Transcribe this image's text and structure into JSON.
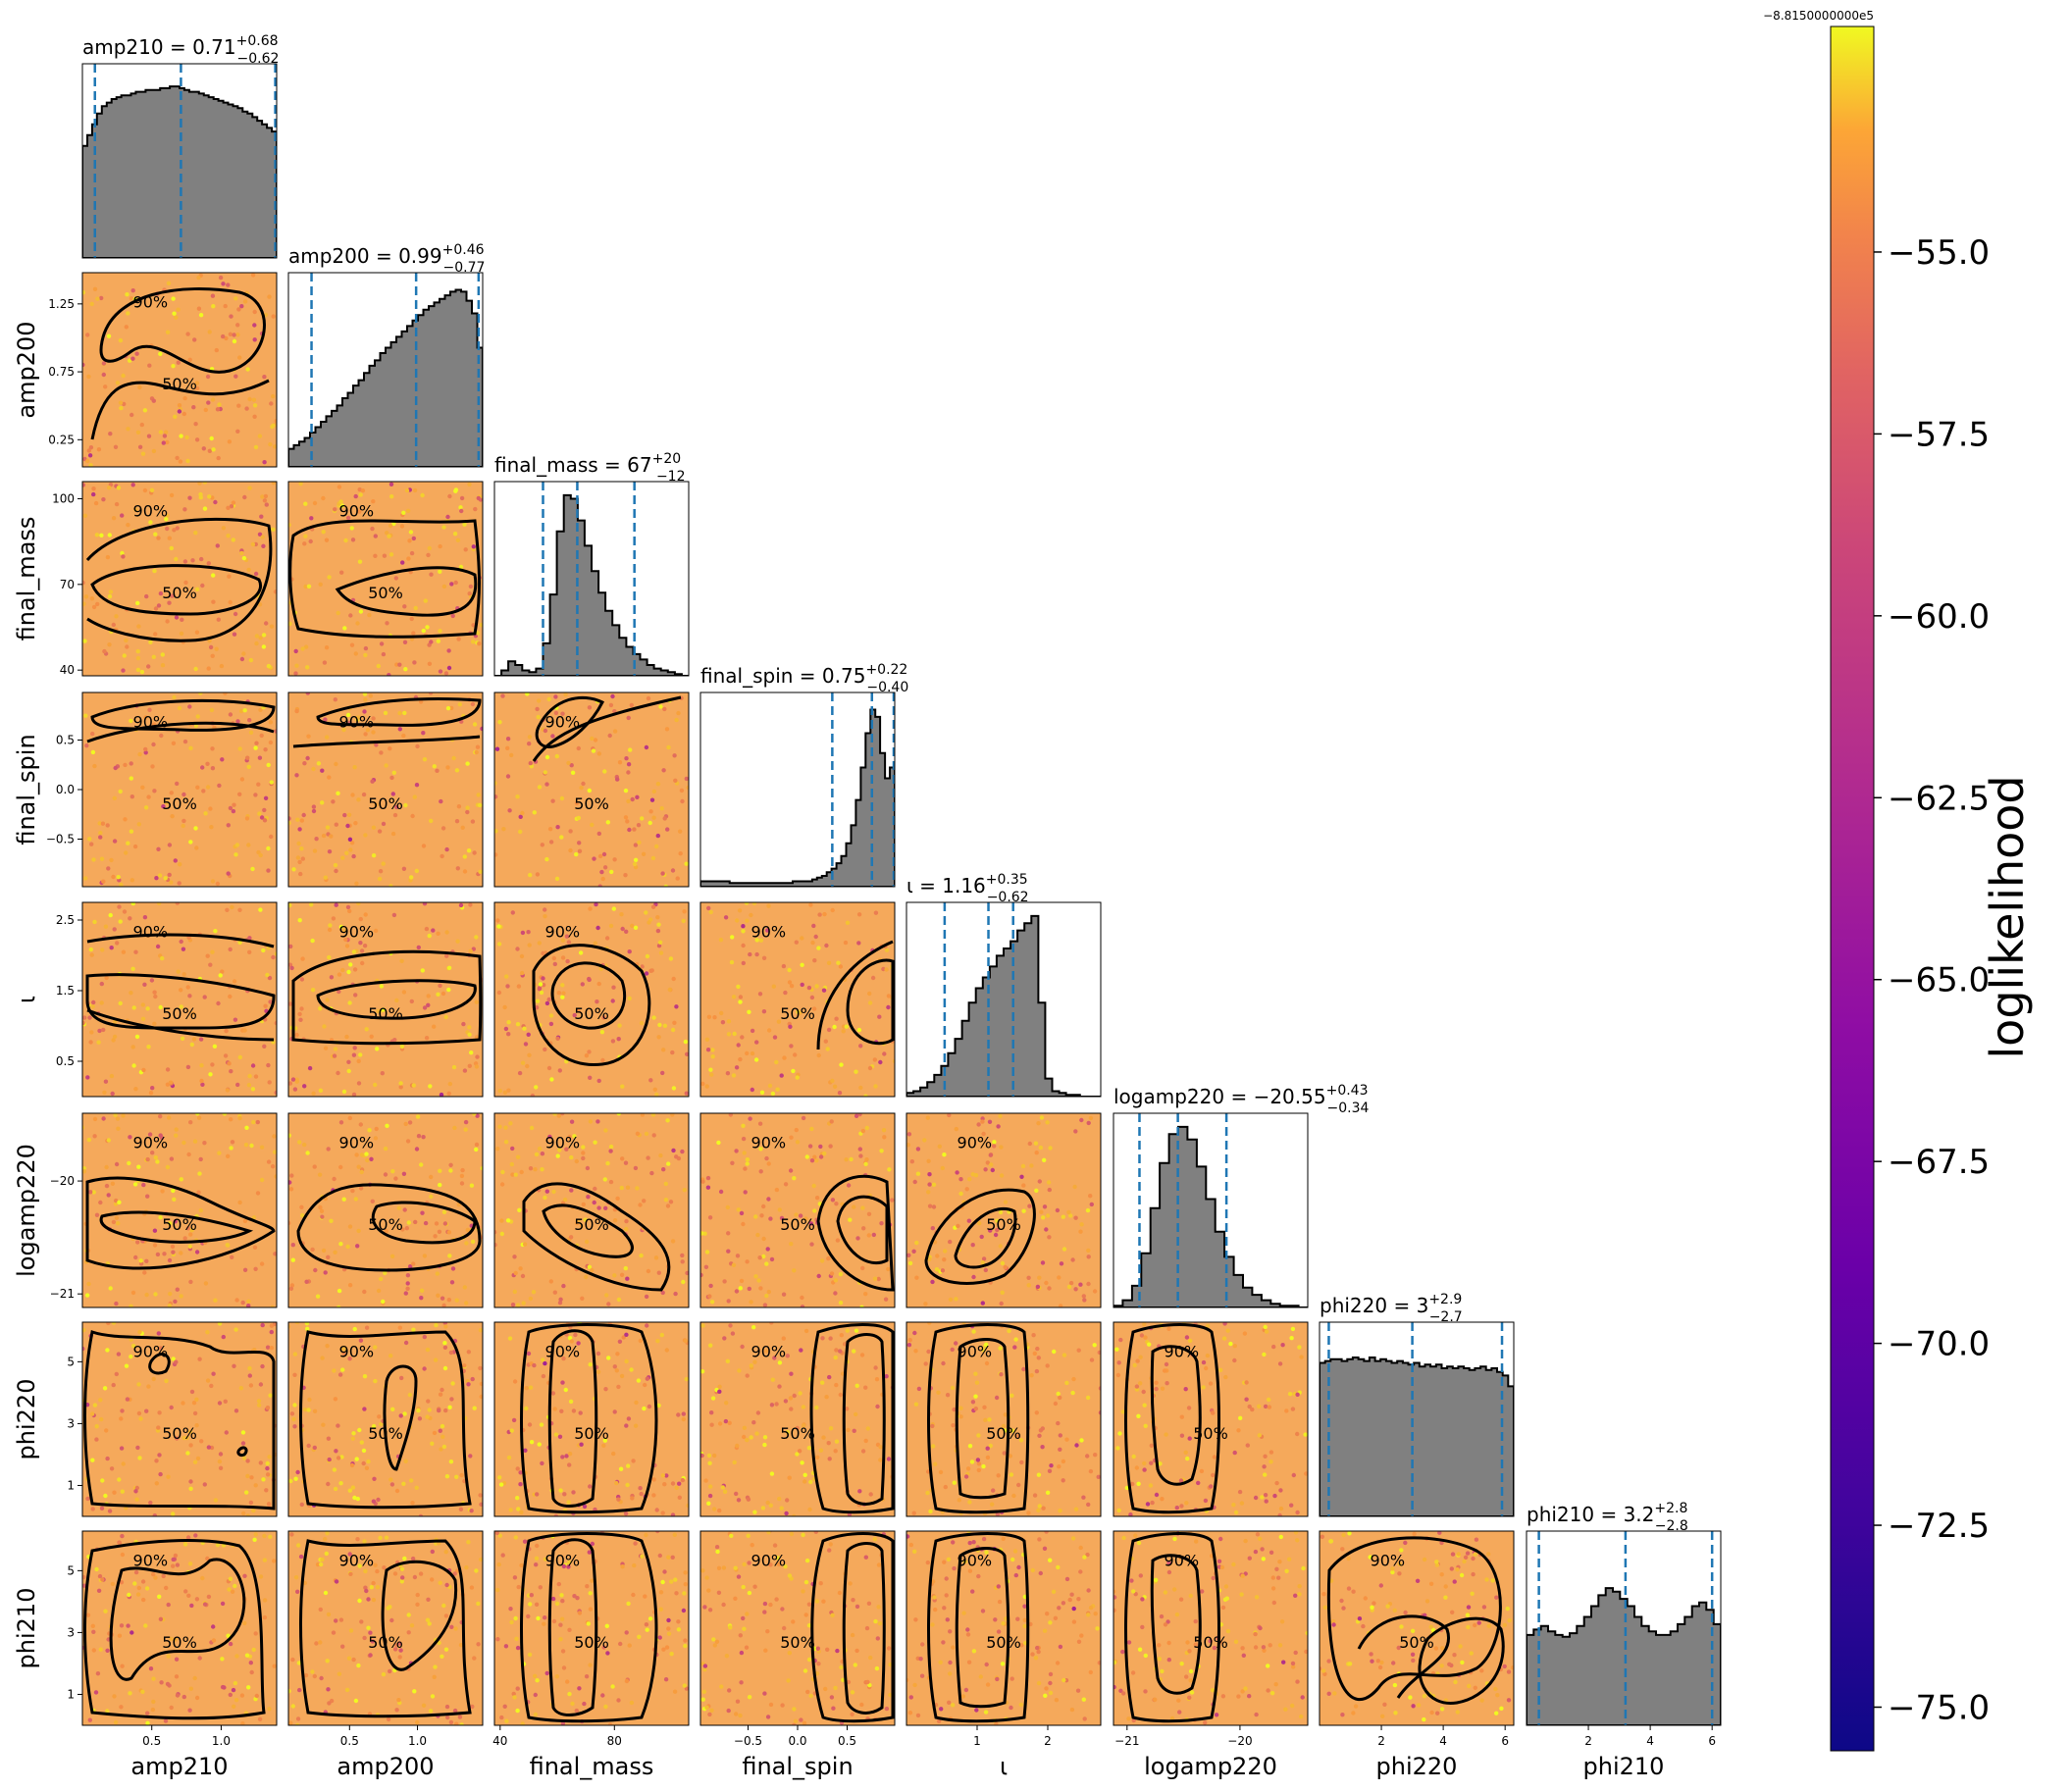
{
  "chart_data": {
    "type": "corner",
    "colormap": "plasma",
    "colorbar": {
      "label": "loglikelihood",
      "offset_text": "−8.8150000000e5",
      "range": [
        -75.6,
        -51.9
      ],
      "ticks": [
        -55.0,
        -57.5,
        -60.0,
        -62.5,
        -65.0,
        -67.5,
        -70.0,
        -72.5,
        -75.0
      ],
      "tick_labels": [
        "−55.0",
        "−57.5",
        "−60.0",
        "−62.5",
        "−65.0",
        "−67.5",
        "−70.0",
        "−72.5",
        "−75.0"
      ]
    },
    "parameters": [
      {
        "name": "amp210",
        "xlabel": "amp210",
        "ylabel": "",
        "title": "amp210 = 0.71",
        "sup": "+0.68",
        "sub": "−0.62",
        "range": [
          0.0,
          1.4
        ],
        "ticks": [
          0.5,
          1.0
        ],
        "tick_labels": [
          "0.5",
          "1.0"
        ],
        "median": 0.71,
        "lo": 0.09,
        "hi": 1.39
      },
      {
        "name": "amp200",
        "xlabel": "amp200",
        "ylabel": "amp200",
        "title": "amp200 = 0.99",
        "sup": "+0.46",
        "sub": "−0.77",
        "range": [
          0.05,
          1.48
        ],
        "ticks": [
          0.25,
          0.75,
          1.25
        ],
        "tick_labels": [
          "0.25",
          "0.75",
          "1.25"
        ],
        "xticks": [
          0.5,
          1.0
        ],
        "xtick_labels": [
          "0.5",
          "1.0"
        ],
        "median": 0.99,
        "lo": 0.22,
        "hi": 1.45
      },
      {
        "name": "final_mass",
        "xlabel": "final_mass",
        "ylabel": "final_mass",
        "title": "final_mass = 67",
        "sup": "+20",
        "sub": "−12",
        "range": [
          38,
          106
        ],
        "ticks": [
          40,
          70,
          100
        ],
        "tick_labels": [
          "40",
          "70",
          "100"
        ],
        "xticks": [
          40,
          80
        ],
        "xtick_labels": [
          "40",
          "80"
        ],
        "median": 67,
        "lo": 55,
        "hi": 87
      },
      {
        "name": "final_spin",
        "xlabel": "final_spin",
        "ylabel": "final_spin",
        "title": "final_spin = 0.75",
        "sup": "+0.22",
        "sub": "−0.40",
        "range": [
          -0.98,
          0.98
        ],
        "ticks": [
          -0.5,
          0.0,
          0.5
        ],
        "tick_labels": [
          "−0.5",
          "0.0",
          "0.5"
        ],
        "xticks": [
          -0.5,
          0.0,
          0.5
        ],
        "xtick_labels": [
          "−0.5",
          "0.0",
          "0.5"
        ],
        "median": 0.75,
        "lo": 0.35,
        "hi": 0.97
      },
      {
        "name": "iota",
        "xlabel": "ι",
        "ylabel": "ι",
        "title": "ι = 1.16",
        "sup": "+0.35",
        "sub": "−0.62",
        "range": [
          0.0,
          2.75
        ],
        "ticks": [
          0.5,
          1.5,
          2.5
        ],
        "tick_labels": [
          "0.5",
          "1.5",
          "2.5"
        ],
        "xticks": [
          1,
          2
        ],
        "xtick_labels": [
          "1",
          "2"
        ],
        "median": 1.16,
        "lo": 0.54,
        "hi": 1.51
      },
      {
        "name": "logamp220",
        "xlabel": "logamp220",
        "ylabel": "logamp220",
        "title": "logamp220 = −20.55",
        "sup": "+0.43",
        "sub": "−0.34",
        "range": [
          -21.12,
          -19.4
        ],
        "ticks": [
          -21,
          -20
        ],
        "tick_labels": [
          "−21",
          "−20"
        ],
        "median": -20.55,
        "lo": -20.89,
        "hi": -20.12
      },
      {
        "name": "phi220",
        "xlabel": "phi220",
        "ylabel": "phi220",
        "title": "phi220 = 3",
        "sup": "+2.9",
        "sub": "−2.7",
        "range": [
          0.0,
          6.28
        ],
        "ticks": [
          1,
          3,
          5
        ],
        "tick_labels": [
          "1",
          "3",
          "5"
        ],
        "xticks": [
          2,
          4,
          6
        ],
        "xtick_labels": [
          "2",
          "4",
          "6"
        ],
        "median": 3.0,
        "lo": 0.3,
        "hi": 5.9
      },
      {
        "name": "phi210",
        "xlabel": "phi210",
        "ylabel": "phi210",
        "title": "phi210 = 3.2",
        "sup": "+2.8",
        "sub": "−2.8",
        "range": [
          0.0,
          6.28
        ],
        "ticks": [
          1,
          3,
          5
        ],
        "tick_labels": [
          "1",
          "3",
          "5"
        ],
        "xticks": [
          2,
          4,
          6
        ],
        "xtick_labels": [
          "2",
          "4",
          "6"
        ],
        "median": 3.2,
        "lo": 0.4,
        "hi": 6.0
      }
    ],
    "histograms": [
      [
        0.62,
        0.68,
        0.74,
        0.8,
        0.84,
        0.86,
        0.88,
        0.89,
        0.9,
        0.9,
        0.91,
        0.92,
        0.92,
        0.93,
        0.93,
        0.93,
        0.94,
        0.94,
        0.95,
        0.95,
        0.94,
        0.93,
        0.92,
        0.92,
        0.91,
        0.9,
        0.89,
        0.88,
        0.87,
        0.86,
        0.85,
        0.84,
        0.83,
        0.81,
        0.8,
        0.78,
        0.76,
        0.74,
        0.72,
        0.7
      ],
      [
        0.1,
        0.12,
        0.14,
        0.16,
        0.19,
        0.22,
        0.25,
        0.28,
        0.31,
        0.34,
        0.38,
        0.41,
        0.45,
        0.48,
        0.52,
        0.56,
        0.59,
        0.63,
        0.66,
        0.69,
        0.72,
        0.75,
        0.78,
        0.81,
        0.84,
        0.87,
        0.89,
        0.91,
        0.93,
        0.95,
        0.97,
        0.98,
        0.97,
        0.92,
        0.85,
        0.66
      ],
      [
        0.0,
        0.03,
        0.08,
        0.06,
        0.03,
        0.02,
        0.04,
        0.18,
        0.45,
        0.8,
        1.0,
        0.98,
        0.86,
        0.72,
        0.58,
        0.46,
        0.36,
        0.28,
        0.21,
        0.16,
        0.12,
        0.09,
        0.06,
        0.04,
        0.03,
        0.02,
        0.01,
        0.0
      ],
      [
        0.03,
        0.03,
        0.03,
        0.03,
        0.03,
        0.03,
        0.02,
        0.02,
        0.02,
        0.02,
        0.02,
        0.02,
        0.02,
        0.02,
        0.02,
        0.02,
        0.02,
        0.02,
        0.02,
        0.03,
        0.03,
        0.03,
        0.03,
        0.04,
        0.05,
        0.06,
        0.08,
        0.1,
        0.13,
        0.17,
        0.24,
        0.34,
        0.48,
        0.66,
        0.85,
        0.98,
        0.94,
        0.74,
        0.6,
        0.66
      ],
      [
        0.02,
        0.03,
        0.05,
        0.08,
        0.12,
        0.17,
        0.24,
        0.32,
        0.42,
        0.52,
        0.6,
        0.66,
        0.72,
        0.78,
        0.82,
        0.86,
        0.92,
        0.96,
        1.0,
        0.52,
        0.1,
        0.03,
        0.02,
        0.01,
        0.01,
        0.0,
        0.0,
        0.0
      ],
      [
        0.01,
        0.04,
        0.12,
        0.3,
        0.55,
        0.8,
        0.96,
        1.0,
        0.93,
        0.78,
        0.6,
        0.42,
        0.28,
        0.18,
        0.11,
        0.07,
        0.04,
        0.02,
        0.01,
        0.01,
        0.0
      ],
      [
        0.85,
        0.86,
        0.87,
        0.87,
        0.86,
        0.87,
        0.88,
        0.87,
        0.86,
        0.88,
        0.86,
        0.87,
        0.86,
        0.85,
        0.86,
        0.85,
        0.84,
        0.85,
        0.83,
        0.84,
        0.83,
        0.84,
        0.82,
        0.83,
        0.82,
        0.83,
        0.82,
        0.81,
        0.82,
        0.83,
        0.81,
        0.82,
        0.8,
        0.78,
        0.72
      ],
      [
        0.5,
        0.53,
        0.55,
        0.52,
        0.5,
        0.49,
        0.51,
        0.55,
        0.6,
        0.66,
        0.72,
        0.76,
        0.74,
        0.7,
        0.66,
        0.6,
        0.55,
        0.52,
        0.5,
        0.5,
        0.52,
        0.56,
        0.6,
        0.66,
        0.68,
        0.64,
        0.56
      ]
    ]
  }
}
